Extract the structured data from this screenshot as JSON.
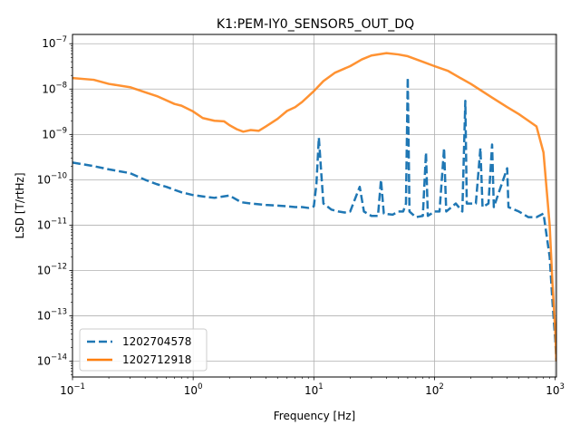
{
  "chart_data": {
    "type": "line",
    "title": "K1:PEM-IY0_SENSOR5_OUT_DQ",
    "xlabel": "Frequency [Hz]",
    "ylabel": "LSD [T/rtHz]",
    "xscale": "log",
    "yscale": "log",
    "xlim": [
      0.1,
      1024
    ],
    "ylim": [
      4.5e-15,
      1.6e-07
    ],
    "grid": true,
    "legend_position": "lower-left",
    "x_ticks": [
      {
        "value": 0.1,
        "base": "10",
        "exp": "−1"
      },
      {
        "value": 1,
        "base": "10",
        "exp": "0"
      },
      {
        "value": 10,
        "base": "10",
        "exp": "1"
      },
      {
        "value": 100,
        "base": "10",
        "exp": "2"
      },
      {
        "value": 1000,
        "base": "10",
        "exp": "3"
      }
    ],
    "y_ticks": [
      {
        "value": 1e-14,
        "base": "10",
        "exp": "−14"
      },
      {
        "value": 1e-13,
        "base": "10",
        "exp": "−13"
      },
      {
        "value": 1e-12,
        "base": "10",
        "exp": "−12"
      },
      {
        "value": 1e-11,
        "base": "10",
        "exp": "−11"
      },
      {
        "value": 1e-10,
        "base": "10",
        "exp": "−10"
      },
      {
        "value": 1e-09,
        "base": "10",
        "exp": "−9"
      },
      {
        "value": 1e-08,
        "base": "10",
        "exp": "−8"
      },
      {
        "value": 1e-07,
        "base": "10",
        "exp": "−7"
      }
    ],
    "series": [
      {
        "name": "1202704578",
        "color": "#1f77b4",
        "style": "dashed",
        "points": [
          [
            0.1,
            2.4e-10
          ],
          [
            0.15,
            2e-10
          ],
          [
            0.2,
            1.7e-10
          ],
          [
            0.3,
            1.4e-10
          ],
          [
            0.4,
            1e-10
          ],
          [
            0.5,
            8e-11
          ],
          [
            0.6,
            7e-11
          ],
          [
            0.7,
            6e-11
          ],
          [
            0.8,
            5.3e-11
          ],
          [
            1.0,
            4.6e-11
          ],
          [
            1.2,
            4.3e-11
          ],
          [
            1.5,
            4e-11
          ],
          [
            2.0,
            4.5e-11
          ],
          [
            2.5,
            3.2e-11
          ],
          [
            3.0,
            3e-11
          ],
          [
            4.0,
            2.8e-11
          ],
          [
            5.0,
            2.7e-11
          ],
          [
            6.0,
            2.6e-11
          ],
          [
            7.0,
            2.5e-11
          ],
          [
            8.0,
            2.5e-11
          ],
          [
            9.0,
            2.4e-11
          ],
          [
            10.0,
            2.6e-11
          ],
          [
            10.5,
            8e-11
          ],
          [
            11.0,
            8.5e-10
          ],
          [
            11.5,
            1.5e-10
          ],
          [
            12.0,
            3e-11
          ],
          [
            14.0,
            2.2e-11
          ],
          [
            16.0,
            2e-11
          ],
          [
            18.0,
            1.9e-11
          ],
          [
            20.0,
            2e-11
          ],
          [
            24.0,
            7e-11
          ],
          [
            26.0,
            2e-11
          ],
          [
            30.0,
            1.6e-11
          ],
          [
            34.0,
            1.6e-11
          ],
          [
            36.0,
            1e-10
          ],
          [
            38.0,
            1.8e-11
          ],
          [
            45.0,
            1.7e-11
          ],
          [
            50.0,
            2e-11
          ],
          [
            55.0,
            2e-11
          ],
          [
            58.0,
            3e-11
          ],
          [
            60.0,
            1.8e-08
          ],
          [
            62.0,
            2e-11
          ],
          [
            70.0,
            1.5e-11
          ],
          [
            80.0,
            1.6e-11
          ],
          [
            85.0,
            4e-10
          ],
          [
            88.0,
            1.6e-11
          ],
          [
            100.0,
            2e-11
          ],
          [
            110.0,
            2e-11
          ],
          [
            120.0,
            5e-10
          ],
          [
            125.0,
            2e-11
          ],
          [
            150.0,
            3e-11
          ],
          [
            170.0,
            2e-11
          ],
          [
            180.0,
            5.5e-09
          ],
          [
            185.0,
            3e-11
          ],
          [
            220.0,
            3e-11
          ],
          [
            240.0,
            5e-10
          ],
          [
            250.0,
            2.5e-11
          ],
          [
            280.0,
            3e-11
          ],
          [
            300.0,
            6e-10
          ],
          [
            310.0,
            2.5e-11
          ],
          [
            400.0,
            1.8e-10
          ],
          [
            410.0,
            2.5e-11
          ],
          [
            500.0,
            2e-11
          ],
          [
            600.0,
            1.5e-11
          ],
          [
            700.0,
            1.5e-11
          ],
          [
            800.0,
            1.8e-11
          ],
          [
            900.0,
            2e-12
          ],
          [
            950.0,
            2e-13
          ],
          [
            1000.0,
            3e-14
          ],
          [
            1024.0,
            1e-14
          ]
        ]
      },
      {
        "name": "1202712918",
        "color": "#ff7f0e",
        "style": "solid",
        "points": [
          [
            0.1,
            1.75e-08
          ],
          [
            0.15,
            1.6e-08
          ],
          [
            0.2,
            1.3e-08
          ],
          [
            0.3,
            1.1e-08
          ],
          [
            0.4,
            8.5e-09
          ],
          [
            0.5,
            7e-09
          ],
          [
            0.7,
            4.7e-09
          ],
          [
            0.8,
            4.3e-09
          ],
          [
            1.0,
            3.2e-09
          ],
          [
            1.2,
            2.3e-09
          ],
          [
            1.5,
            2e-09
          ],
          [
            1.8,
            1.95e-09
          ],
          [
            2.0,
            1.6e-09
          ],
          [
            2.3,
            1.3e-09
          ],
          [
            2.6,
            1.15e-09
          ],
          [
            3.0,
            1.25e-09
          ],
          [
            3.5,
            1.2e-09
          ],
          [
            4.0,
            1.5e-09
          ],
          [
            5.0,
            2.2e-09
          ],
          [
            6.0,
            3.3e-09
          ],
          [
            7.0,
            4e-09
          ],
          [
            8.0,
            5.2e-09
          ],
          [
            10.0,
            9e-09
          ],
          [
            12.0,
            1.5e-08
          ],
          [
            15.0,
            2.3e-08
          ],
          [
            20.0,
            3.2e-08
          ],
          [
            25.0,
            4.5e-08
          ],
          [
            30.0,
            5.5e-08
          ],
          [
            40.0,
            6.2e-08
          ],
          [
            50.0,
            5.8e-08
          ],
          [
            60.0,
            5.3e-08
          ],
          [
            80.0,
            4e-08
          ],
          [
            100.0,
            3.2e-08
          ],
          [
            130.0,
            2.5e-08
          ],
          [
            150.0,
            2e-08
          ],
          [
            200.0,
            1.3e-08
          ],
          [
            300.0,
            6.5e-09
          ],
          [
            400.0,
            4e-09
          ],
          [
            500.0,
            2.8e-09
          ],
          [
            600.0,
            2e-09
          ],
          [
            700.0,
            1.5e-09
          ],
          [
            800.0,
            4e-10
          ],
          [
            900.0,
            1e-11
          ],
          [
            950.0,
            5e-13
          ],
          [
            1000.0,
            5e-14
          ],
          [
            1024.0,
            1e-14
          ]
        ]
      }
    ]
  }
}
